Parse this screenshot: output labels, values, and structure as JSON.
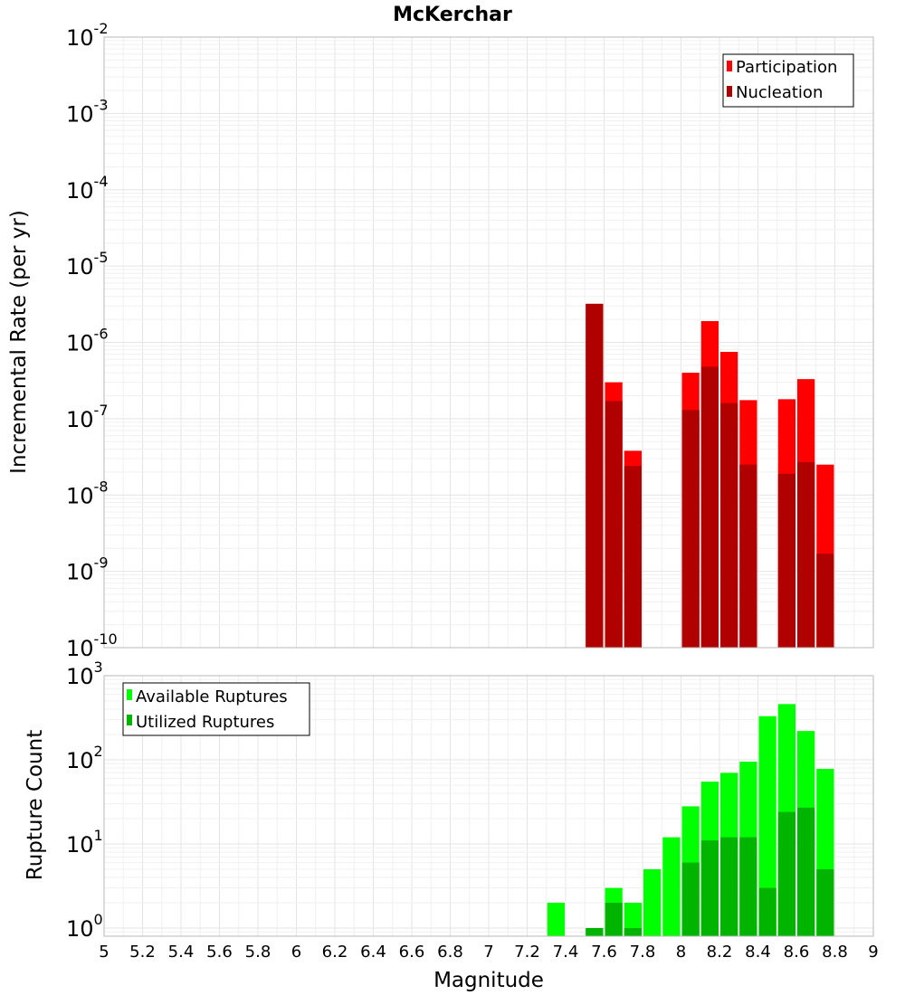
{
  "title": "McKerchar",
  "colors": {
    "participation": "#ff0000",
    "nucleation": "#b00000",
    "available": "#00ff00",
    "utilized": "#00b400"
  },
  "chart_data": [
    {
      "type": "bar",
      "panel": "top",
      "title": "McKerchar",
      "xlabel": "Magnitude",
      "ylabel": "Incremental Rate (per yr)",
      "yscale": "log",
      "ylim": [
        1e-10,
        0.01
      ],
      "xlim": [
        5,
        9
      ],
      "grid": true,
      "legend_position": "top-right",
      "y_tick_exponents": [
        -10,
        -9,
        -8,
        -7,
        -6,
        -5,
        -4,
        -3,
        -2
      ],
      "series": [
        {
          "name": "Participation",
          "color": "#ff0000",
          "x": [
            7.55,
            7.65,
            7.75,
            8.05,
            8.15,
            8.25,
            8.35,
            8.55,
            8.65,
            8.75
          ],
          "values": [
            3.2e-06,
            3e-07,
            3.8e-08,
            4e-07,
            1.9e-06,
            7.5e-07,
            1.75e-07,
            1.8e-07,
            3.3e-07,
            2.5e-08
          ]
        },
        {
          "name": "Nucleation",
          "color": "#b00000",
          "x": [
            7.55,
            7.65,
            7.75,
            8.05,
            8.15,
            8.25,
            8.35,
            8.55,
            8.65,
            8.75
          ],
          "values": [
            3.2e-06,
            1.7e-07,
            2.4e-08,
            1.3e-07,
            4.8e-07,
            1.6e-07,
            2.5e-08,
            1.9e-08,
            2.7e-08,
            1.7e-09
          ]
        }
      ]
    },
    {
      "type": "bar",
      "panel": "bottom",
      "xlabel": "Magnitude",
      "ylabel": "Rupture Count",
      "yscale": "log",
      "ylim": [
        0.8,
        1000
      ],
      "xlim": [
        5,
        9
      ],
      "grid": true,
      "legend_position": "top-left",
      "y_tick_exponents": [
        0,
        1,
        2,
        3
      ],
      "x_ticks": [
        "5",
        "5.2",
        "5.4",
        "5.6",
        "5.8",
        "6",
        "6.2",
        "6.4",
        "6.6",
        "6.8",
        "7",
        "7.2",
        "7.4",
        "7.6",
        "7.8",
        "8",
        "8.2",
        "8.4",
        "8.6",
        "8.8",
        "9"
      ],
      "series": [
        {
          "name": "Available Ruptures",
          "color": "#00ff00",
          "x": [
            7.35,
            7.55,
            7.65,
            7.75,
            7.85,
            7.95,
            8.05,
            8.15,
            8.25,
            8.35,
            8.45,
            8.55,
            8.65,
            8.75
          ],
          "values": [
            2,
            1,
            3,
            2,
            5,
            12,
            28,
            55,
            70,
            95,
            330,
            460,
            220,
            78
          ]
        },
        {
          "name": "Utilized Ruptures",
          "color": "#00b400",
          "x": [
            7.55,
            7.65,
            7.75,
            8.05,
            8.15,
            8.25,
            8.35,
            8.45,
            8.55,
            8.65,
            8.75
          ],
          "values": [
            1,
            2,
            1,
            6,
            11,
            12,
            12,
            3,
            24,
            27,
            5
          ]
        }
      ]
    }
  ]
}
